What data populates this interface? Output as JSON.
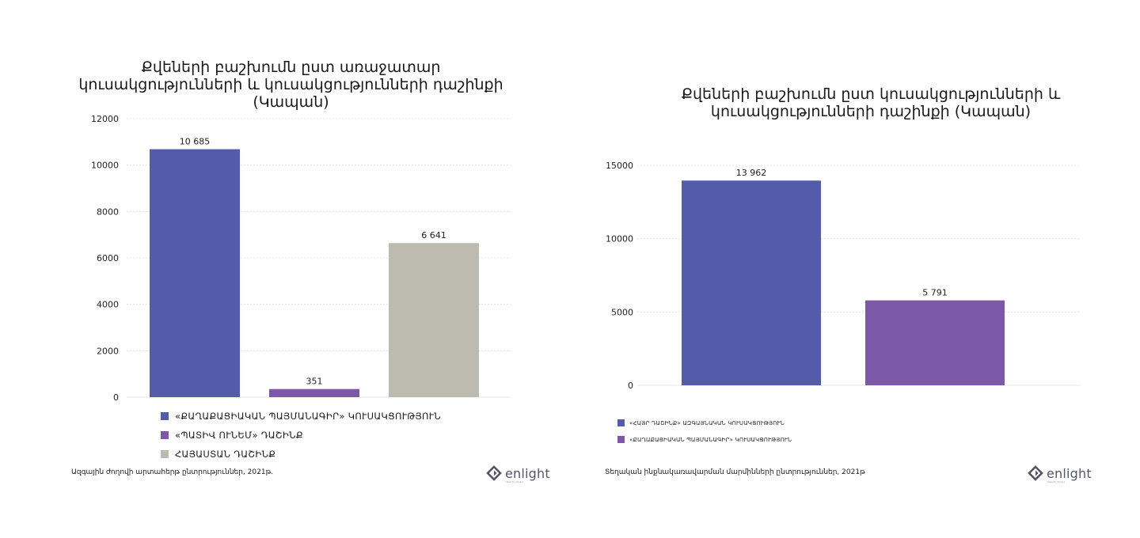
{
  "chart_data": [
    {
      "type": "bar",
      "title": "Քվեների բաշխումն ըստ առաջատար կուսակցությունների և կուսակցությունների դաշինքի (Կապան)",
      "categories": [
        "«ՔԱՂԱՔԱՑԻԱԿԱՆ ՊԱՅՄԱՆԱԳԻՐ» ԿՈՒՍԱԿՑՈՒԹՅՈՒՆ",
        "«ՊԱՏԻՎ ՈՒՆԵՄ» ԴԱՇԻՆՔ",
        "ՀԱՅԱՍՏԱՆ ԴԱՇԻՆՔ"
      ],
      "values": [
        10685,
        351,
        6641
      ],
      "value_labels": [
        "10 685",
        "351",
        "6 641"
      ],
      "colors": [
        "#545ba8",
        "#7e58a8",
        "#bdbbb0"
      ],
      "ylim": [
        0,
        12000
      ],
      "yticks": [
        0,
        2000,
        4000,
        6000,
        8000,
        10000,
        12000
      ],
      "ytick_labels": [
        "0",
        "2000",
        "4000",
        "6000",
        "8000",
        "10000",
        "12000"
      ],
      "grid": true,
      "legend": "bottom",
      "source": "Ազգային ժողովի արտահերթ ընտրություններ, 2021թ."
    },
    {
      "type": "bar",
      "title": "Քվեների բաշխումն ըստ կուսակցությունների և կուսակցությունների դաշինքի (Կապան)",
      "categories": [
        "«ՀԱՅՐ ԴԱՇԻՆՔ» ԱԶԳԱՅՆԱԿԱՆ ԿՈՒՍԱԿՑՈՒԹՅՈՒՆ",
        "«ՔԱՂԱՔԱՑԻԱԿԱՆ ՊԱՅՄԱՆԱԳԻՐ» ԿՈՒՍԱԿՑՈՒԹՅՈՒՆ"
      ],
      "values": [
        13962,
        5791
      ],
      "value_labels": [
        "13 962",
        "5 791"
      ],
      "colors": [
        "#545ba8",
        "#7e58a8"
      ],
      "ylim": [
        0,
        15000
      ],
      "yticks": [
        0,
        5000,
        10000,
        15000
      ],
      "ytick_labels": [
        "0",
        "5000",
        "10000",
        "15000"
      ],
      "grid": true,
      "legend": "bottom",
      "source": "Տեղական ինքնակառավարման մարմինների ընտրություններ, 2021թ"
    }
  ],
  "brand": {
    "name": "enlight",
    "tagline": "ideas to impact",
    "color": "#555566"
  }
}
